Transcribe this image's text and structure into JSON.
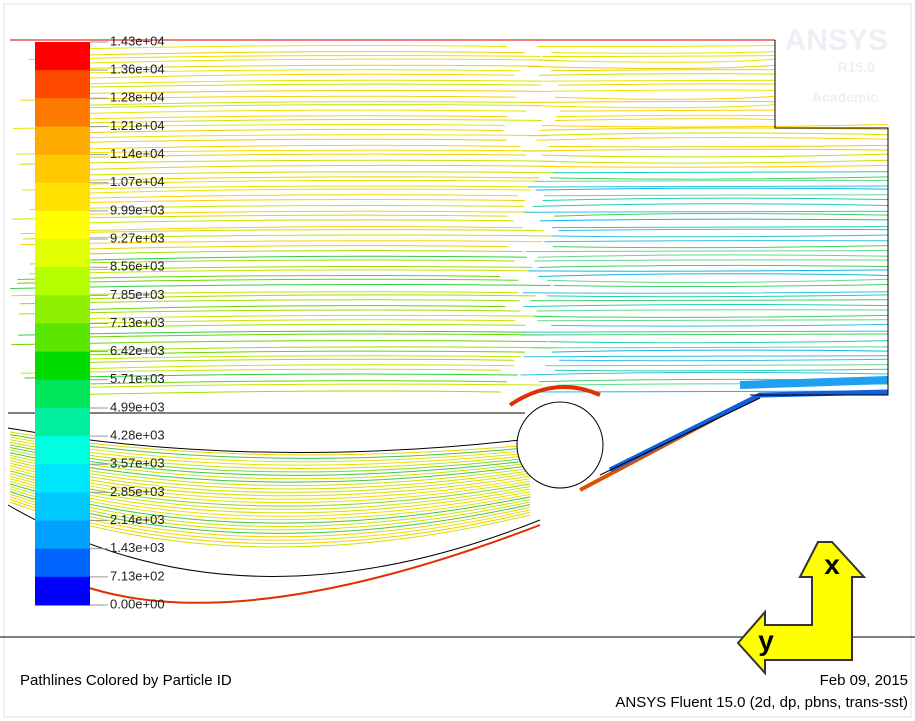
{
  "colorbar": {
    "labels": [
      "1.43e+04",
      "1.36e+04",
      "1.28e+04",
      "1.21e+04",
      "1.14e+04",
      "1.07e+04",
      "9.99e+03",
      "9.27e+03",
      "8.56e+03",
      "7.85e+03",
      "7.13e+03",
      "6.42e+03",
      "5.71e+03",
      "4.99e+03",
      "4.28e+03",
      "3.57e+03",
      "2.85e+03",
      "2.14e+03",
      "1.43e+03",
      "7.13e+02",
      "0.00e+00"
    ],
    "colors": [
      "#ff0000",
      "#ff4800",
      "#ff7a00",
      "#ffaa00",
      "#ffc800",
      "#ffe000",
      "#ffff00",
      "#e0ff00",
      "#b4ff00",
      "#8cf000",
      "#5ae600",
      "#00dc00",
      "#00e65a",
      "#00f0a0",
      "#00ffe0",
      "#00e6ff",
      "#00c8ff",
      "#00a0ff",
      "#0064ff",
      "#0000ff"
    ]
  },
  "logo": {
    "name": "ANSYS",
    "version": "R15.0",
    "edition": "Academic"
  },
  "axes": {
    "x": "x",
    "y": "y"
  },
  "footer": {
    "caption": "Pathlines Colored by Particle ID",
    "date": "Feb 09, 2015",
    "solver": "ANSYS Fluent 15.0 (2d, dp, pbns, trans-sst)"
  }
}
